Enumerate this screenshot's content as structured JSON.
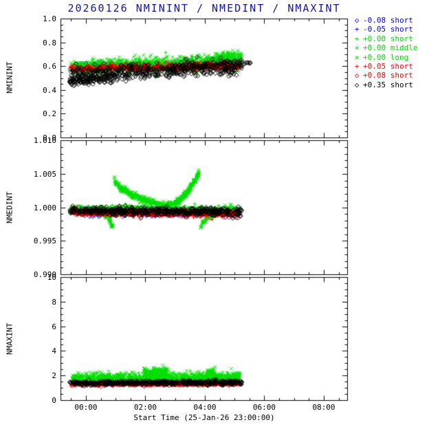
{
  "chart_data": {
    "type": "scatter",
    "title": "20260126 NMININT / NMEDINT / NMAXINT",
    "title_color": "#14149c",
    "axis_color": "#000000",
    "xlabel": "Start Time (25-Jan-26 23:00:00)",
    "x_range": [
      -0.855,
      8.786
    ],
    "x_major": 2,
    "x_minor": 0.5,
    "x_ticks": [
      {
        "v": 0,
        "label": "00:00"
      },
      {
        "v": 2,
        "label": "02:00"
      },
      {
        "v": 4,
        "label": "04:00"
      },
      {
        "v": 6,
        "label": "06:00"
      },
      {
        "v": 8,
        "label": "08:00"
      }
    ],
    "legend": {
      "position": "top-right",
      "entries": [
        {
          "label": "-0.08 short",
          "color": "#0000ff",
          "marker": "diamond"
        },
        {
          "label": "-0.05 short",
          "color": "#0000ff",
          "marker": "plus"
        },
        {
          "label": "+0.00 short",
          "color": "#00dd00",
          "marker": "plus"
        },
        {
          "label": "+0.00 middle",
          "color": "#00dd00",
          "marker": "cross"
        },
        {
          "label": "+0.00 long",
          "color": "#00dd00",
          "marker": "cross"
        },
        {
          "label": "+0.05 short",
          "color": "#ff0000",
          "marker": "plus"
        },
        {
          "label": "+0.08 short",
          "color": "#ff0000",
          "marker": "diamond"
        },
        {
          "label": "+0.35 short",
          "color": "#000000",
          "marker": "diamond"
        }
      ]
    },
    "panels": [
      {
        "ylabel": "NMININT",
        "y_range": [
          0,
          1
        ],
        "y_major": 0.2,
        "y_minor": 0.05,
        "y_ticks": [
          {
            "v": 0.0,
            "label": "0.0"
          },
          {
            "v": 0.2,
            "label": "0.2"
          },
          {
            "v": 0.4,
            "label": "0.4"
          },
          {
            "v": 0.6,
            "label": "0.6"
          },
          {
            "v": 0.8,
            "label": "0.8"
          },
          {
            "v": 1.0,
            "label": "1.0"
          }
        ],
        "series": [
          {
            "legend": "-0.08 short",
            "color": "#0000ff",
            "marker": "diamond",
            "clusters": [
              {
                "x0": -0.5,
                "x1": 5.2,
                "n": 110,
                "yA": 0.6,
                "yB": 0.62,
                "sd": 0.015
              }
            ]
          },
          {
            "legend": "-0.05 short",
            "color": "#0000ff",
            "marker": "plus",
            "clusters": [
              {
                "x0": -0.5,
                "x1": 5.2,
                "n": 110,
                "yA": 0.59,
                "yB": 0.615,
                "sd": 0.015
              }
            ]
          },
          {
            "legend": "+0.00 short",
            "color": "#00dd00",
            "marker": "plus",
            "clusters": [
              {
                "x0": -0.5,
                "x1": 5.2,
                "n": 450,
                "yA": 0.575,
                "yB": 0.625,
                "sd": 0.028
              }
            ]
          },
          {
            "legend": "+0.00 middle",
            "color": "#00dd00",
            "marker": "cross",
            "clusters": [
              {
                "x0": -0.5,
                "x1": 5.2,
                "n": 450,
                "yA": 0.59,
                "yB": 0.64,
                "sd": 0.028
              }
            ]
          },
          {
            "legend": "+0.00 long",
            "color": "#00dd00",
            "marker": "cross",
            "clusters": [
              {
                "x0": -0.5,
                "x1": 5.2,
                "n": 300,
                "yA": 0.6,
                "yB": 0.65,
                "sd": 0.025
              },
              {
                "x0": 4.35,
                "x1": 5.25,
                "n": 140,
                "yA": 0.66,
                "yB": 0.7,
                "sd": 0.022
              }
            ]
          },
          {
            "legend": "+0.05 short",
            "color": "#ff0000",
            "marker": "plus",
            "clusters": [
              {
                "x0": -0.5,
                "x1": 5.2,
                "n": 320,
                "yA": 0.575,
                "yB": 0.6,
                "sd": 0.013
              }
            ]
          },
          {
            "legend": "+0.08 short",
            "color": "#ff0000",
            "marker": "diamond",
            "clusters": [
              {
                "x0": -0.5,
                "x1": 5.2,
                "n": 140,
                "yA": 0.585,
                "yB": 0.605,
                "sd": 0.013
              }
            ]
          },
          {
            "legend": "+0.35 short",
            "color": "#000000",
            "marker": "diamond",
            "clusters": [
              {
                "x0": -0.55,
                "x1": 5.25,
                "n": 520,
                "yA": 0.525,
                "yB": 0.6,
                "sd": 0.033
              },
              {
                "x0": -0.55,
                "x1": 1.0,
                "n": 110,
                "yA": 0.47,
                "yB": 0.5,
                "sd": 0.018
              },
              {
                "x0": 5.3,
                "x1": 5.55,
                "n": 7,
                "yA": 0.62,
                "yB": 0.63,
                "sd": 0.008
              }
            ]
          }
        ]
      },
      {
        "ylabel": "NMEDINT",
        "y_range": [
          0.99,
          1.01
        ],
        "y_major": 0.005,
        "y_minor": 0.001,
        "y_ticks": [
          {
            "v": 0.99,
            "label": "0.990"
          },
          {
            "v": 0.995,
            "label": "0.995"
          },
          {
            "v": 1.0,
            "label": "1.000"
          },
          {
            "v": 1.005,
            "label": "1.005"
          },
          {
            "v": 1.01,
            "label": "1.010"
          }
        ],
        "series": [
          {
            "legend": "-0.08 short",
            "color": "#0000ff",
            "marker": "diamond",
            "clusters": [
              {
                "x0": -0.5,
                "x1": 5.2,
                "n": 150,
                "yA": 0.9993,
                "yB": 0.9991,
                "sd": 0.0003
              }
            ]
          },
          {
            "legend": "-0.05 short",
            "color": "#0000ff",
            "marker": "plus",
            "clusters": [
              {
                "x0": -0.5,
                "x1": 5.2,
                "n": 150,
                "yA": 0.9993,
                "yB": 0.9991,
                "sd": 0.0003
              }
            ]
          },
          {
            "legend": "+0.00 short",
            "color": "#00dd00",
            "marker": "plus",
            "clusters": [
              {
                "x0": -0.5,
                "x1": 5.2,
                "n": 420,
                "yA": 0.9997,
                "yB": 0.9995,
                "sd": 0.0003
              }
            ]
          },
          {
            "legend": "+0.00 middle",
            "color": "#00dd00",
            "marker": "cross",
            "clusters": [
              {
                "x0": 0.5,
                "x1": 0.93,
                "n": 70,
                "yA": 0.9992,
                "yB": 0.9967,
                "sd": 0.0002,
                "p": 2.2
              },
              {
                "x0": 0.95,
                "x1": 2.55,
                "n": 280,
                "yA": 1.0047,
                "yB": 1.0003,
                "sd": 0.00025,
                "p": 0.45
              },
              {
                "x0": -0.5,
                "x1": 5.2,
                "n": 200,
                "yA": 0.9997,
                "yB": 0.9996,
                "sd": 0.0003
              }
            ]
          },
          {
            "legend": "+0.00 long",
            "color": "#00dd00",
            "marker": "cross",
            "clusters": [
              {
                "x0": 2.55,
                "x1": 3.8,
                "n": 280,
                "yA": 1.0002,
                "yB": 1.0052,
                "sd": 0.00025,
                "p": 2.4
              },
              {
                "x0": 3.84,
                "x1": 4.4,
                "n": 70,
                "yA": 0.9966,
                "yB": 0.9992,
                "sd": 0.0002,
                "p": 0.5
              },
              {
                "x0": -0.5,
                "x1": 5.2,
                "n": 150,
                "yA": 0.9996,
                "yB": 0.9995,
                "sd": 0.0003
              }
            ]
          },
          {
            "legend": "+0.05 short",
            "color": "#ff0000",
            "marker": "plus",
            "clusters": [
              {
                "x0": -0.5,
                "x1": 5.2,
                "n": 380,
                "yA": 0.9992,
                "yB": 0.999,
                "sd": 0.00025
              }
            ]
          },
          {
            "legend": "+0.08 short",
            "color": "#ff0000",
            "marker": "diamond",
            "clusters": [
              {
                "x0": -0.5,
                "x1": 5.2,
                "n": 140,
                "yA": 0.9992,
                "yB": 0.999,
                "sd": 0.00025
              }
            ]
          },
          {
            "legend": "+0.35 short",
            "color": "#000000",
            "marker": "diamond",
            "clusters": [
              {
                "x0": -0.55,
                "x1": 5.25,
                "n": 520,
                "yA": 0.9995,
                "yB": 0.9993,
                "sd": 0.0003
              }
            ]
          }
        ]
      },
      {
        "ylabel": "NMAXINT",
        "y_range": [
          0,
          10
        ],
        "y_major": 2,
        "y_minor": 0.5,
        "y_ticks": [
          {
            "v": 0,
            "label": "0"
          },
          {
            "v": 2,
            "label": "2"
          },
          {
            "v": 4,
            "label": "4"
          },
          {
            "v": 6,
            "label": "6"
          },
          {
            "v": 8,
            "label": "8"
          },
          {
            "v": 10,
            "label": "10"
          }
        ],
        "series": [
          {
            "legend": "-0.08 short",
            "color": "#0000ff",
            "marker": "diamond",
            "clusters": [
              {
                "x0": -0.5,
                "x1": 5.2,
                "n": 90,
                "yA": 1.45,
                "yB": 1.45,
                "sd": 0.08
              }
            ]
          },
          {
            "legend": "-0.05 short",
            "color": "#0000ff",
            "marker": "plus",
            "clusters": [
              {
                "x0": -0.5,
                "x1": 5.2,
                "n": 90,
                "yA": 1.4,
                "yB": 1.4,
                "sd": 0.08
              }
            ]
          },
          {
            "legend": "+0.00 short",
            "color": "#00dd00",
            "marker": "plus",
            "clusters": [
              {
                "x0": -0.5,
                "x1": 5.2,
                "n": 420,
                "yA": 1.7,
                "yB": 1.75,
                "sd": 0.18
              }
            ]
          },
          {
            "legend": "+0.00 middle",
            "color": "#00dd00",
            "marker": "cross",
            "clusters": [
              {
                "x0": -0.5,
                "x1": 5.2,
                "n": 420,
                "yA": 1.8,
                "yB": 1.85,
                "sd": 0.2
              },
              {
                "x0": 1.95,
                "x1": 2.75,
                "n": 140,
                "yA": 2.25,
                "yB": 2.3,
                "sd": 0.18
              }
            ]
          },
          {
            "legend": "+0.00 long",
            "color": "#00dd00",
            "marker": "cross",
            "clusters": [
              {
                "x0": -0.5,
                "x1": 5.2,
                "n": 300,
                "yA": 1.85,
                "yB": 1.9,
                "sd": 0.2
              },
              {
                "x0": 4.05,
                "x1": 4.35,
                "n": 60,
                "yA": 2.1,
                "yB": 2.25,
                "sd": 0.18
              }
            ]
          },
          {
            "legend": "+0.05 short",
            "color": "#ff0000",
            "marker": "plus",
            "clusters": [
              {
                "x0": -0.5,
                "x1": 5.2,
                "n": 360,
                "yA": 1.27,
                "yB": 1.3,
                "sd": 0.06
              }
            ]
          },
          {
            "legend": "+0.08 short",
            "color": "#ff0000",
            "marker": "diamond",
            "clusters": [
              {
                "x0": -0.5,
                "x1": 5.2,
                "n": 130,
                "yA": 1.3,
                "yB": 1.32,
                "sd": 0.06
              }
            ]
          },
          {
            "legend": "+0.35 short",
            "color": "#000000",
            "marker": "diamond",
            "clusters": [
              {
                "x0": -0.55,
                "x1": 5.25,
                "n": 480,
                "yA": 1.38,
                "yB": 1.42,
                "sd": 0.09
              }
            ]
          }
        ]
      }
    ]
  }
}
